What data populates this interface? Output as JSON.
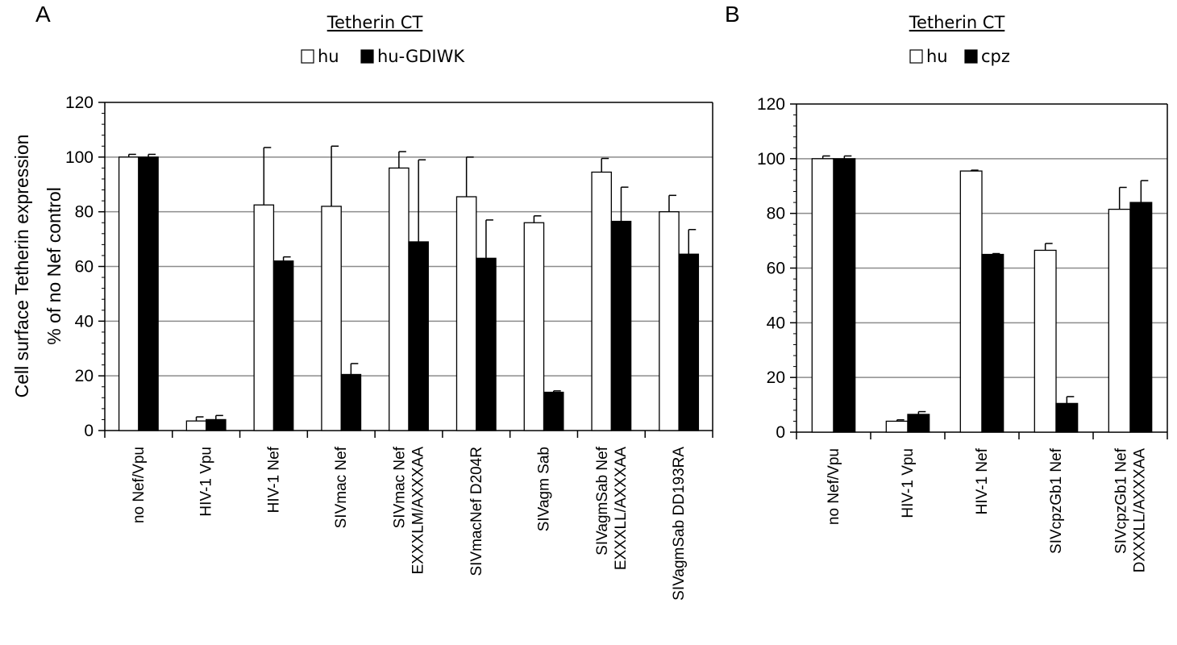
{
  "chart_data": [
    {
      "type": "bar",
      "panel_label": "A",
      "title": "Tetherin CT",
      "ylabel_lines": [
        "Cell surface Tetherin expression",
        "% of no Nef control"
      ],
      "xlabel": "",
      "ylim": [
        0,
        120
      ],
      "yticks": [
        0,
        20,
        40,
        60,
        80,
        100,
        120
      ],
      "grid": true,
      "legend_position": "top-center",
      "categories": [
        [
          "no Nef/Vpu"
        ],
        [
          "HIV-1 Vpu"
        ],
        [
          "HIV-1 Nef"
        ],
        [
          "SIVmac Nef"
        ],
        [
          "SIVmac Nef",
          "EXXXLM/AXXXAA"
        ],
        [
          "SIVmacNef D204R"
        ],
        [
          "SIVagm Sab"
        ],
        [
          "SIVagmSab Nef",
          "EXXXLL/AXXXAA"
        ],
        [
          "SIVagmSab DD193RA"
        ]
      ],
      "series": [
        {
          "name": "hu",
          "fill": "#ffffff",
          "values": [
            100,
            3.5,
            82.5,
            82,
            96,
            85.5,
            76,
            94.5,
            80
          ],
          "errors": [
            1,
            1.5,
            21,
            22,
            6,
            14.5,
            2.5,
            5,
            6
          ]
        },
        {
          "name": "hu-GDIWK",
          "fill": "#000000",
          "values": [
            100,
            4,
            62,
            20.5,
            69,
            63,
            14,
            76.5,
            64.5
          ],
          "errors": [
            1,
            1.5,
            1.5,
            4,
            30,
            14,
            0.5,
            12.5,
            9
          ]
        }
      ]
    },
    {
      "type": "bar",
      "panel_label": "B",
      "title": "Tetherin CT",
      "xlabel": "",
      "ylim": [
        0,
        120
      ],
      "yticks": [
        0,
        20,
        40,
        60,
        80,
        100,
        120
      ],
      "grid": true,
      "legend_position": "top-center",
      "categories": [
        [
          "no Nef/Vpu"
        ],
        [
          "HIV-1 Vpu"
        ],
        [
          "HIV-1 Nef"
        ],
        [
          "SIVcpzGb1 Nef"
        ],
        [
          "SIVcpzGb1 Nef",
          "DXXXLL/AXXXAA"
        ]
      ],
      "series": [
        {
          "name": "hu",
          "fill": "#ffffff",
          "values": [
            100,
            4,
            95.5,
            66.5,
            81.5
          ],
          "errors": [
            1,
            0.5,
            0.3,
            2.5,
            8
          ]
        },
        {
          "name": "cpz",
          "fill": "#000000",
          "values": [
            100,
            6.5,
            65,
            10.5,
            84
          ],
          "errors": [
            1,
            1,
            0.3,
            2.5,
            8
          ]
        }
      ]
    }
  ],
  "colors": {
    "grid": "#8c8c8c",
    "axis": "#000000",
    "bar_outline": "#000000"
  }
}
